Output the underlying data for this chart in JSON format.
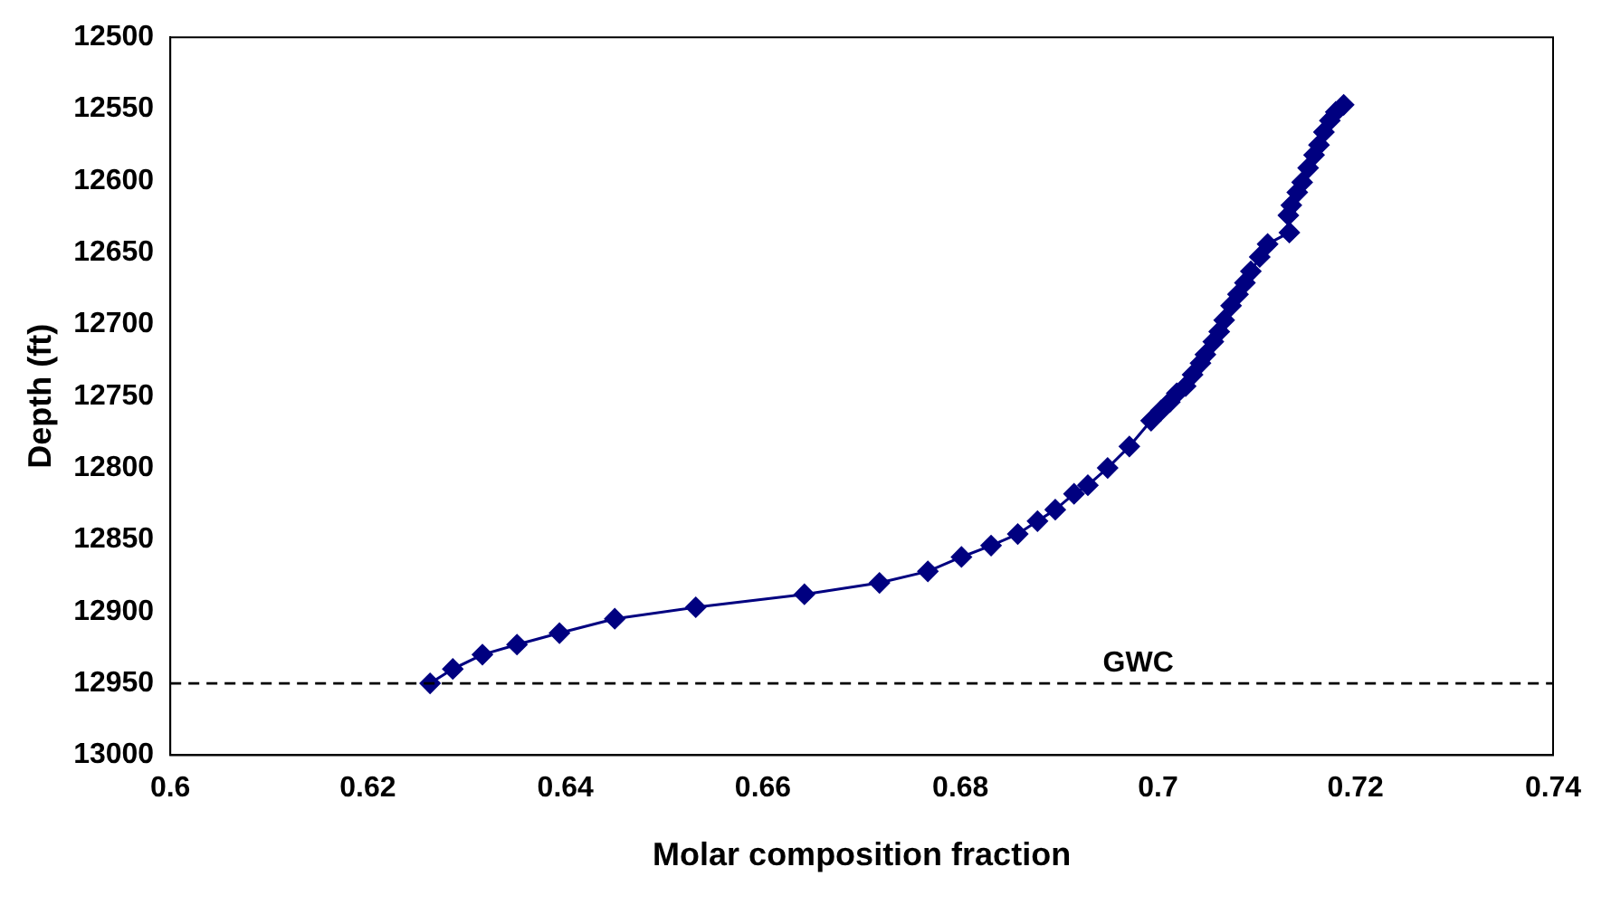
{
  "chart_data": {
    "type": "line",
    "xlabel": "Molar composition fraction",
    "ylabel": "Depth (ft)",
    "x": [
      0.6263,
      0.6286,
      0.6316,
      0.6351,
      0.6394,
      0.645,
      0.6532,
      0.6642,
      0.6718,
      0.6767,
      0.6801,
      0.6831,
      0.6858,
      0.6878,
      0.6896,
      0.6915,
      0.6929,
      0.6949,
      0.6971,
      0.6993,
      0.7003,
      0.7012,
      0.7019,
      0.7028,
      0.7035,
      0.7043,
      0.7048,
      0.7056,
      0.7062,
      0.7067,
      0.7074,
      0.7081,
      0.7088,
      0.7094,
      0.7103,
      0.7111,
      0.7133,
      0.7132,
      0.7135,
      0.7141,
      0.7146,
      0.7152,
      0.7158,
      0.7163,
      0.7168,
      0.7174,
      0.718,
      0.7188
    ],
    "series": [
      {
        "color": "#000080",
        "marker": "diamond",
        "line_style": "solid",
        "values": [
          12950,
          12940,
          12930,
          12923,
          12915,
          12905,
          12897,
          12888,
          12880,
          12872,
          12862,
          12854,
          12846,
          12837,
          12829,
          12818,
          12812,
          12800,
          12785,
          12767,
          12760,
          12754,
          12748,
          12743,
          12735,
          12727,
          12721,
          12712,
          12705,
          12697,
          12687,
          12679,
          12671,
          12663,
          12653,
          12644,
          12636,
          12624,
          12617,
          12608,
          12601,
          12591,
          12582,
          12575,
          12566,
          12558,
          12552,
          12547
        ]
      }
    ],
    "xlim": [
      0.6,
      0.74
    ],
    "xticks": [
      0.6,
      0.62,
      0.64,
      0.66,
      0.68,
      0.7,
      0.72,
      0.74
    ],
    "ylim": [
      13000,
      12500
    ],
    "yticks": [
      12500,
      12550,
      12600,
      12650,
      12700,
      12750,
      12800,
      12850,
      12900,
      12950,
      13000
    ],
    "ref_lines": [
      {
        "axis": "y",
        "value": 12950,
        "label": "GWC",
        "color": "#000000",
        "line_style": "dashed"
      }
    ],
    "grid": false,
    "legend": false
  }
}
